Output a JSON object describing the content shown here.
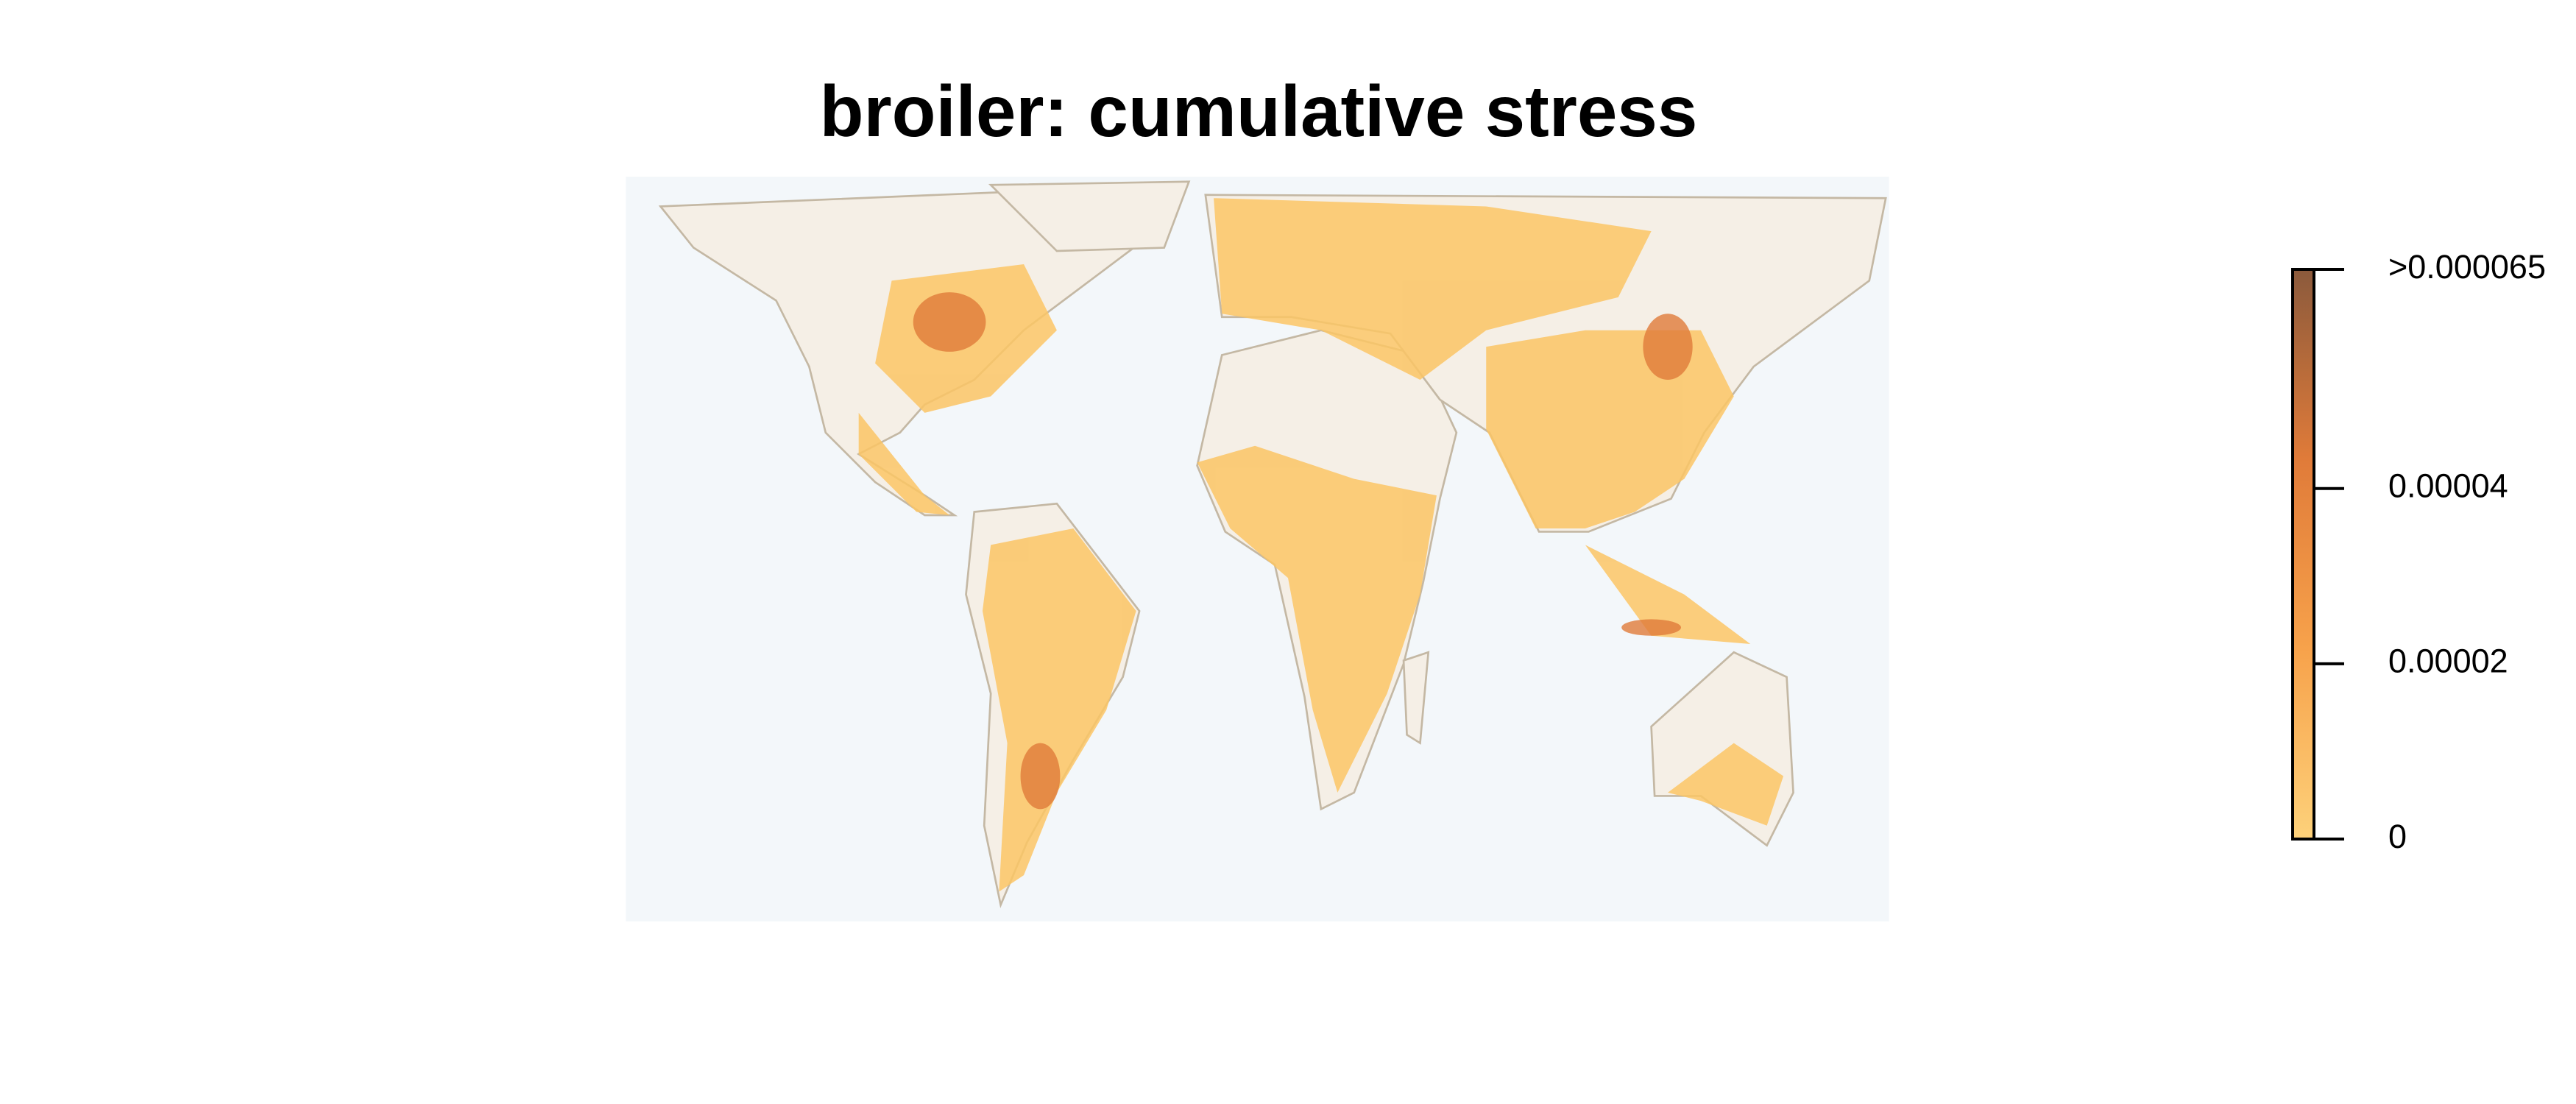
{
  "title": "broiler: cumulative stress",
  "legend": {
    "type": "colorbar",
    "colors": [
      "#fdd17a",
      "#f7a24b",
      "#e07b39",
      "#8b5a3c"
    ],
    "ylim": [
      0,
      6.5e-05
    ],
    "yticks": [
      0,
      2e-05,
      4e-05,
      {
        "value": 6.5e-05,
        "label": ">0.000065"
      }
    ]
  }
}
